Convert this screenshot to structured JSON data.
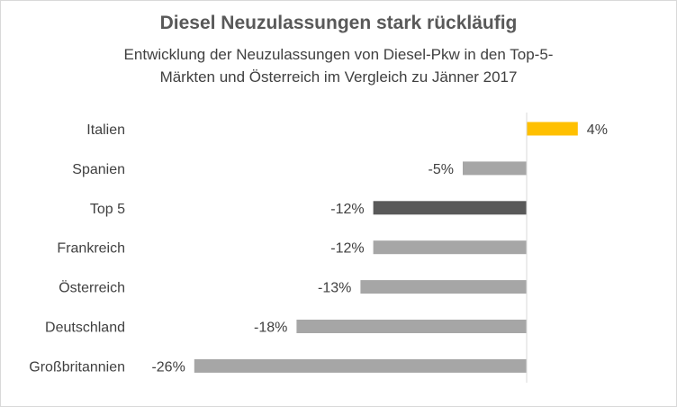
{
  "chart_data": {
    "type": "bar",
    "orientation": "horizontal",
    "title": "Diesel Neuzulassungen stark rückläufig",
    "subtitle_lines": [
      "Entwicklung der Neuzulassungen  von Diesel-Pkw in den Top-5-",
      "Märkten und Österreich im Vergleich zu Jänner 2017"
    ],
    "xlabel": "",
    "ylabel": "",
    "xlim": [
      -26,
      4
    ],
    "gridlines": false,
    "legend": "none",
    "categories": [
      "Italien",
      "Spanien",
      "Top 5",
      "Frankreich",
      "Österreich",
      "Deutschland",
      "Großbritannien"
    ],
    "values": [
      4,
      -5,
      -12,
      -12,
      -13,
      -18,
      -26
    ],
    "value_labels": [
      "4%",
      "-5%",
      "-12%",
      "-12%",
      "-13%",
      "-18%",
      "-26%"
    ],
    "bar_colors": [
      "#ffc000",
      "#a6a6a6",
      "#595959",
      "#a6a6a6",
      "#a6a6a6",
      "#a6a6a6",
      "#a6a6a6"
    ],
    "axis_color": "#d9d9d9"
  }
}
